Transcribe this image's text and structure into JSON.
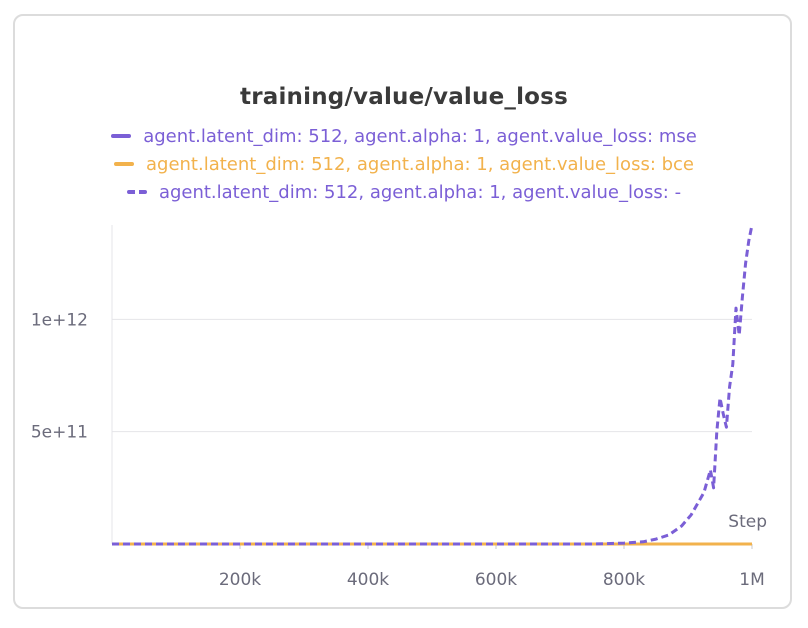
{
  "chart_data": {
    "type": "line",
    "title": "training/value/value_loss",
    "xlabel": "Step",
    "ylabel": "",
    "xlim": [
      0,
      1000000
    ],
    "ylim": [
      0,
      1420000000000
    ],
    "x_ticks": [
      200000,
      400000,
      600000,
      800000,
      1000000
    ],
    "x_tick_labels": [
      "200k",
      "400k",
      "600k",
      "800k",
      "1M"
    ],
    "y_ticks": [
      500000000000,
      1000000000000
    ],
    "y_tick_labels": [
      "5e+11",
      "1e+12"
    ],
    "grid": true,
    "legend_position": "top-center",
    "series": [
      {
        "name": "agent.latent_dim: 512, agent.alpha: 1, agent.value_loss: mse",
        "color": "#7b5fd6",
        "style": "solid",
        "x": [
          0,
          1000000
        ],
        "y": [
          0,
          0
        ]
      },
      {
        "name": "agent.latent_dim: 512, agent.alpha: 1, agent.value_loss: bce",
        "color": "#f2b24c",
        "style": "solid",
        "x": [
          0,
          1000000
        ],
        "y": [
          0,
          0
        ]
      },
      {
        "name": "agent.latent_dim: 512, agent.alpha: 1, agent.value_loss: -",
        "color": "#7b5fd6",
        "style": "dashed",
        "x": [
          0,
          750000,
          800000,
          830000,
          850000,
          870000,
          890000,
          905000,
          915000,
          925000,
          935000,
          940000,
          945000,
          950000,
          955000,
          960000,
          965000,
          970000,
          975000,
          980000,
          985000,
          990000,
          995000,
          1000000
        ],
        "y": [
          0,
          0,
          4000000000,
          10000000000,
          22000000000,
          40000000000,
          80000000000,
          130000000000,
          180000000000,
          230000000000,
          330000000000,
          250000000000,
          500000000000,
          650000000000,
          580000000000,
          520000000000,
          700000000000,
          800000000000,
          1050000000000,
          930000000000,
          1100000000000,
          1250000000000,
          1350000000000,
          1420000000000
        ]
      }
    ]
  }
}
